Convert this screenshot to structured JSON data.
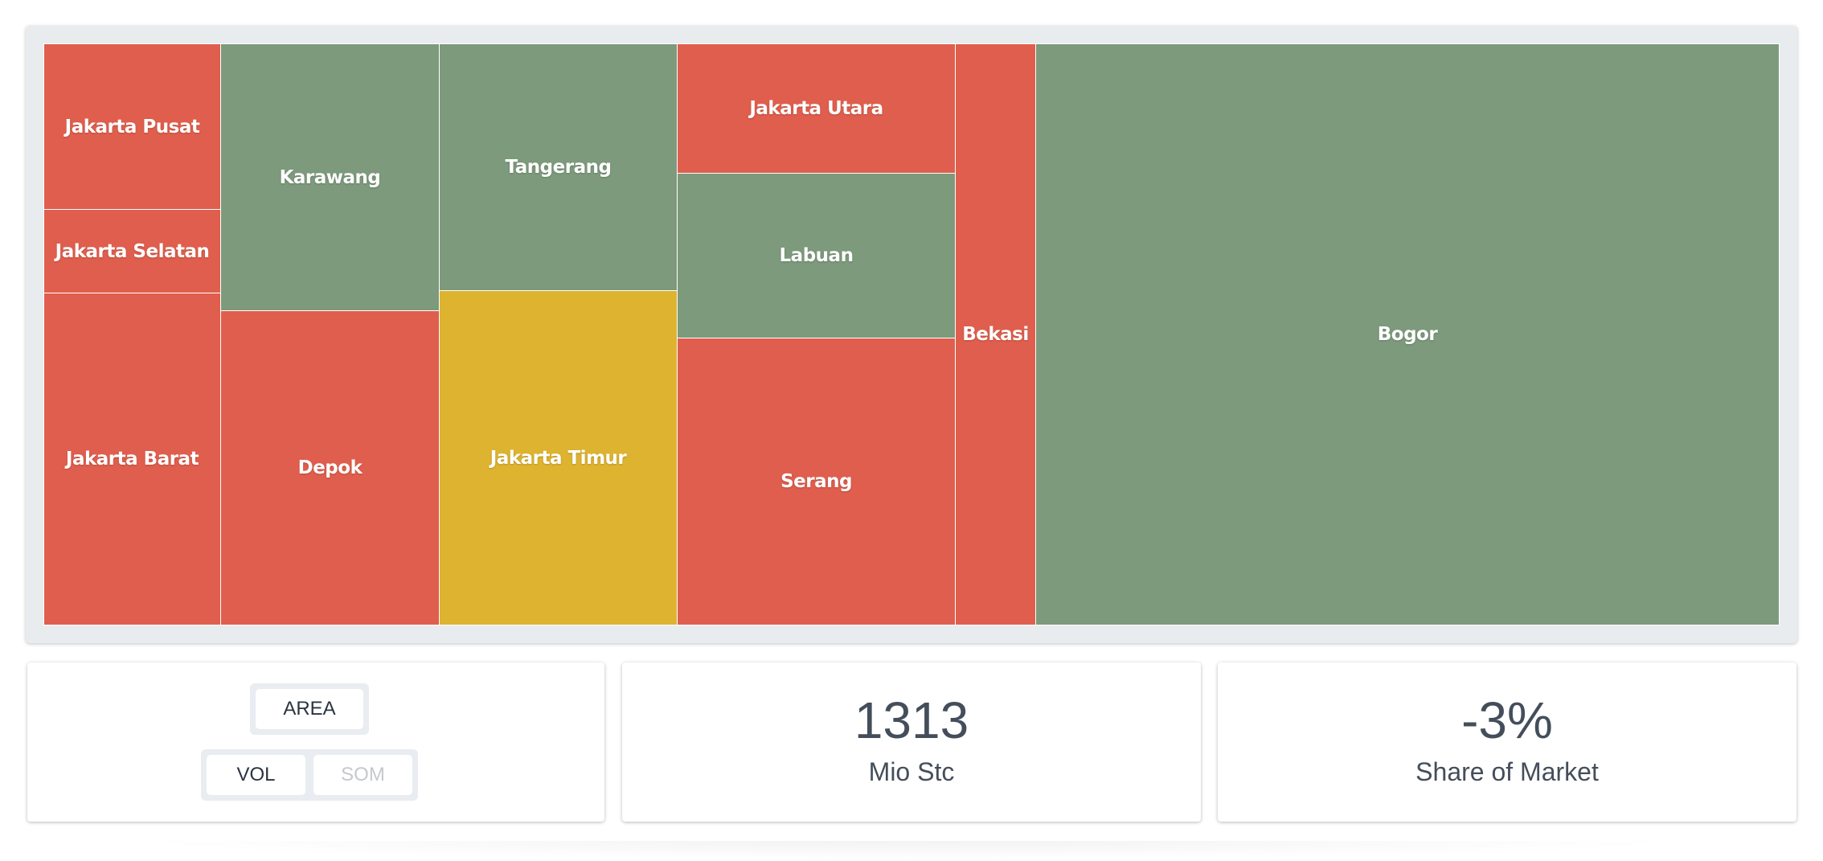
{
  "treemap": {
    "cells": [
      {
        "label": "Jakarta Pusat",
        "status": "red"
      },
      {
        "label": "Jakarta Selatan",
        "status": "red"
      },
      {
        "label": "Jakarta Barat",
        "status": "red"
      },
      {
        "label": "Karawang",
        "status": "green"
      },
      {
        "label": "Depok",
        "status": "red"
      },
      {
        "label": "Tangerang",
        "status": "green"
      },
      {
        "label": "Jakarta Timur",
        "status": "yellow"
      },
      {
        "label": "Jakarta Utara",
        "status": "red"
      },
      {
        "label": "Labuan",
        "status": "green"
      },
      {
        "label": "Serang",
        "status": "red"
      },
      {
        "label": "Bekasi",
        "status": "red"
      },
      {
        "label": "Bogor",
        "status": "green"
      }
    ],
    "colors": {
      "red": "#e05e4d",
      "green": "#7d9a7c",
      "yellow": "#ddb330"
    }
  },
  "controls": {
    "area_label": "AREA",
    "vol_label": "VOL",
    "som_label": "SOM"
  },
  "kpis": {
    "volume": {
      "value": "1313",
      "label": "Mio Stc"
    },
    "share": {
      "value": "-3%",
      "label": "Share of Market"
    }
  }
}
